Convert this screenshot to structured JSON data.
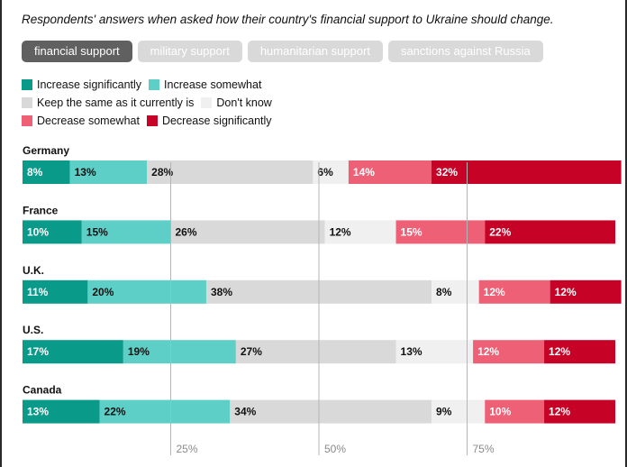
{
  "subtitle": "Respondents' answers when asked how their country's financial support to Ukraine should change.",
  "tabs": [
    {
      "label": "financial support",
      "active": true
    },
    {
      "label": "military support",
      "active": false
    },
    {
      "label": "humanitarian support",
      "active": false
    },
    {
      "label": "sanctions against Russia",
      "active": false
    }
  ],
  "legend": [
    {
      "label": "Increase significantly",
      "color": "#0a9a8a"
    },
    {
      "label": "Increase somewhat",
      "color": "#5ecfc6"
    },
    {
      "label": "Keep the same as it currently is",
      "color": "#d9d9d9"
    },
    {
      "label": "Don't know",
      "color": "#f0f0f0"
    },
    {
      "label": "Decrease somewhat",
      "color": "#ee6076"
    },
    {
      "label": "Decrease significantly",
      "color": "#c60327"
    }
  ],
  "chart_data": {
    "type": "bar",
    "orientation": "horizontal",
    "stacked": true,
    "title": "Respondents' answers when asked how their country's financial support to Ukraine should change.",
    "categories": [
      "Germany",
      "France",
      "U.K.",
      "U.S.",
      "Canada"
    ],
    "series": [
      {
        "name": "Increase significantly",
        "values": [
          8,
          10,
          11,
          17,
          13
        ]
      },
      {
        "name": "Increase somewhat",
        "values": [
          13,
          15,
          20,
          19,
          22
        ]
      },
      {
        "name": "Keep the same as it currently is",
        "values": [
          28,
          26,
          38,
          27,
          34
        ]
      },
      {
        "name": "Don't know",
        "values": [
          6,
          12,
          8,
          13,
          9
        ]
      },
      {
        "name": "Decrease somewhat",
        "values": [
          14,
          15,
          12,
          12,
          10
        ]
      },
      {
        "name": "Decrease significantly",
        "values": [
          32,
          22,
          12,
          12,
          12
        ]
      }
    ],
    "xlim": [
      0,
      100
    ],
    "xticks": [
      25,
      50,
      75
    ],
    "xtick_labels": [
      "25%",
      "50%",
      "75%"
    ],
    "label_colors": [
      "#ffffff",
      "#111111",
      "#111111",
      "#111111",
      "#ffffff",
      "#ffffff"
    ]
  }
}
